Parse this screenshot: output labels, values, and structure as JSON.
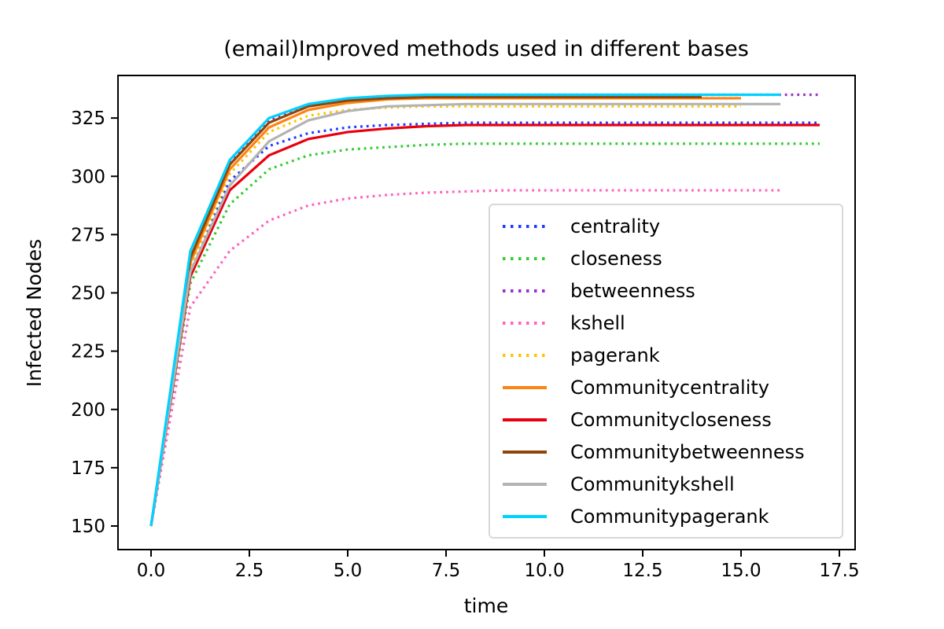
{
  "chart_data": {
    "type": "line",
    "title": "(email)Improved methods used in different bases",
    "xlabel": "time",
    "ylabel": "Infected Nodes",
    "grid": false,
    "legend_position": "center right",
    "axis_color": "#000000",
    "x_tick_labels": [
      "0.0",
      "2.5",
      "5.0",
      "7.5",
      "10.0",
      "12.5",
      "15.0",
      "17.5"
    ],
    "x_tick_values": [
      0,
      2.5,
      5,
      7.5,
      10,
      12.5,
      15,
      17.5
    ],
    "y_tick_values": [
      150,
      175,
      200,
      225,
      250,
      275,
      300,
      325
    ],
    "xlim": [
      -0.85,
      17.85
    ],
    "ylim": [
      140.5,
      344.5
    ],
    "x_step": 1,
    "series": [
      {
        "name": "centrality",
        "color": "#1e3cff",
        "style": "dotted",
        "values": [
          150,
          261,
          298,
          313,
          318.5,
          321,
          322,
          322.5,
          323,
          323,
          323,
          323,
          323,
          323,
          323,
          323,
          323,
          323
        ]
      },
      {
        "name": "closeness",
        "color": "#32cd32",
        "style": "dotted",
        "values": [
          150,
          254,
          288,
          303,
          309,
          311.5,
          312.5,
          313.5,
          314,
          314,
          314,
          314,
          314,
          314,
          314,
          314,
          314,
          314
        ]
      },
      {
        "name": "betweenness",
        "color": "#9932cc",
        "style": "dotted",
        "values": [
          150,
          264,
          306,
          324,
          330.5,
          333,
          334,
          334.5,
          335,
          335,
          335,
          335,
          335,
          335,
          335,
          335,
          335,
          335
        ]
      },
      {
        "name": "kshell",
        "color": "#ff63c0",
        "style": "dotted",
        "values": [
          150,
          244,
          268,
          281,
          287.5,
          290.5,
          292,
          293,
          293.5,
          294,
          294,
          294,
          294,
          294,
          294,
          294,
          294
        ]
      },
      {
        "name": "pagerank",
        "color": "#ffc400",
        "style": "dotted",
        "values": [
          150,
          261,
          301,
          319,
          326,
          328.5,
          329.5,
          330,
          330,
          330,
          330,
          330,
          330,
          330,
          330,
          330
        ]
      },
      {
        "name": "Communitycentrality",
        "color": "#fd8314",
        "style": "solid",
        "values": [
          150,
          263,
          303,
          321,
          328.5,
          331.5,
          333,
          333.5,
          333.5,
          333.5,
          333.5,
          333.5,
          333.5,
          333.5,
          333.5,
          333.5
        ]
      },
      {
        "name": "Communitycloseness",
        "color": "#e8000d",
        "style": "solid",
        "values": [
          150,
          257,
          294,
          309,
          316,
          319,
          320.5,
          321.5,
          322,
          322,
          322,
          322,
          322,
          322,
          322,
          322,
          322,
          322
        ]
      },
      {
        "name": "Communitybetweenness",
        "color": "#8f4509",
        "style": "solid",
        "values": [
          150,
          265,
          305,
          323,
          330,
          332.5,
          333.5,
          334,
          334,
          334,
          334,
          334,
          334,
          334,
          334
        ]
      },
      {
        "name": "Communitykshell",
        "color": "#b3b3b3",
        "style": "solid",
        "values": [
          150,
          259,
          296,
          315,
          324,
          328,
          330,
          330.5,
          331,
          331,
          331,
          331,
          331,
          331,
          331,
          331,
          331
        ]
      },
      {
        "name": "Communitypagerank",
        "color": "#00d1ff",
        "style": "solid",
        "values": [
          150,
          268,
          307,
          325,
          331,
          333.5,
          334.5,
          335,
          335,
          335,
          335,
          335,
          335,
          335,
          335,
          335,
          335
        ]
      }
    ]
  }
}
